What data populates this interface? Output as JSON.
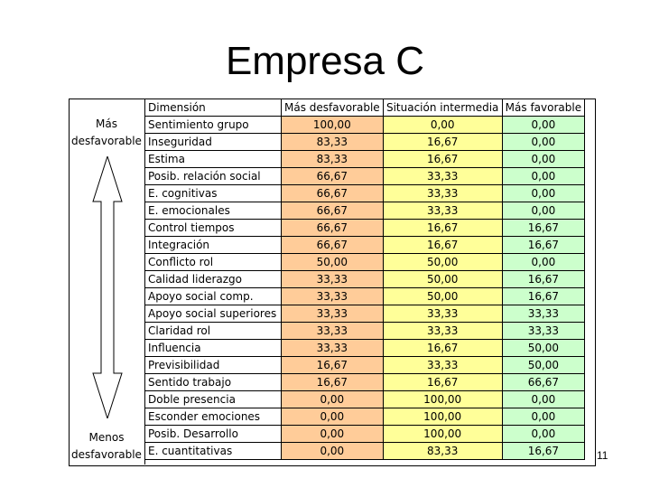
{
  "title": "Empresa C",
  "slide_number": "11",
  "left_labels": {
    "top_line1": "Más",
    "top_line2": "desfavorable",
    "bottom_line1": "Menos",
    "bottom_line2": "desfavorable"
  },
  "table": {
    "headers": [
      "Dimensión",
      "Más desfavorable",
      "Situación intermedia",
      "Más favorable"
    ],
    "rows": [
      {
        "dimension": "Sentimiento grupo",
        "mas_desfavorable": "100,00",
        "situacion_intermedia": "0,00",
        "mas_favorable": "0,00"
      },
      {
        "dimension": "Inseguridad",
        "mas_desfavorable": "83,33",
        "situacion_intermedia": "16,67",
        "mas_favorable": "0,00"
      },
      {
        "dimension": "Estima",
        "mas_desfavorable": "83,33",
        "situacion_intermedia": "16,67",
        "mas_favorable": "0,00"
      },
      {
        "dimension": "Posib. relación social",
        "mas_desfavorable": "66,67",
        "situacion_intermedia": "33,33",
        "mas_favorable": "0,00"
      },
      {
        "dimension": "E. cognitivas",
        "mas_desfavorable": "66,67",
        "situacion_intermedia": "33,33",
        "mas_favorable": "0,00"
      },
      {
        "dimension": "E. emocionales",
        "mas_desfavorable": "66,67",
        "situacion_intermedia": "33,33",
        "mas_favorable": "0,00"
      },
      {
        "dimension": "Control tiempos",
        "mas_desfavorable": "66,67",
        "situacion_intermedia": "16,67",
        "mas_favorable": "16,67"
      },
      {
        "dimension": "Integración",
        "mas_desfavorable": "66,67",
        "situacion_intermedia": "16,67",
        "mas_favorable": "16,67"
      },
      {
        "dimension": "Conflicto rol",
        "mas_desfavorable": "50,00",
        "situacion_intermedia": "50,00",
        "mas_favorable": "0,00"
      },
      {
        "dimension": "Calidad liderazgo",
        "mas_desfavorable": "33,33",
        "situacion_intermedia": "50,00",
        "mas_favorable": "16,67"
      },
      {
        "dimension": "Apoyo social comp.",
        "mas_desfavorable": "33,33",
        "situacion_intermedia": "50,00",
        "mas_favorable": "16,67"
      },
      {
        "dimension": "Apoyo social superiores",
        "mas_desfavorable": "33,33",
        "situacion_intermedia": "33,33",
        "mas_favorable": "33,33"
      },
      {
        "dimension": "Claridad rol",
        "mas_desfavorable": "33,33",
        "situacion_intermedia": "33,33",
        "mas_favorable": "33,33"
      },
      {
        "dimension": "Influencia",
        "mas_desfavorable": "33,33",
        "situacion_intermedia": "16,67",
        "mas_favorable": "50,00"
      },
      {
        "dimension": "Previsibilidad",
        "mas_desfavorable": "16,67",
        "situacion_intermedia": "33,33",
        "mas_favorable": "50,00"
      },
      {
        "dimension": "Sentido trabajo",
        "mas_desfavorable": "16,67",
        "situacion_intermedia": "16,67",
        "mas_favorable": "66,67"
      },
      {
        "dimension": "Doble presencia",
        "mas_desfavorable": "0,00",
        "situacion_intermedia": "100,00",
        "mas_favorable": "0,00"
      },
      {
        "dimension": "Esconder emociones",
        "mas_desfavorable": "0,00",
        "situacion_intermedia": "100,00",
        "mas_favorable": "0,00"
      },
      {
        "dimension": "Posib. Desarrollo",
        "mas_desfavorable": "0,00",
        "situacion_intermedia": "100,00",
        "mas_favorable": "0,00"
      },
      {
        "dimension": "E. cuantitativas",
        "mas_desfavorable": "0,00",
        "situacion_intermedia": "83,33",
        "mas_favorable": "16,67"
      }
    ]
  },
  "colors": {
    "mas_desfavorable": "#ffcc99",
    "situacion_intermedia": "#ffff99",
    "mas_favorable": "#ccffcc"
  },
  "icons": {
    "scale_arrow": "double-headed-vertical-arrow"
  }
}
